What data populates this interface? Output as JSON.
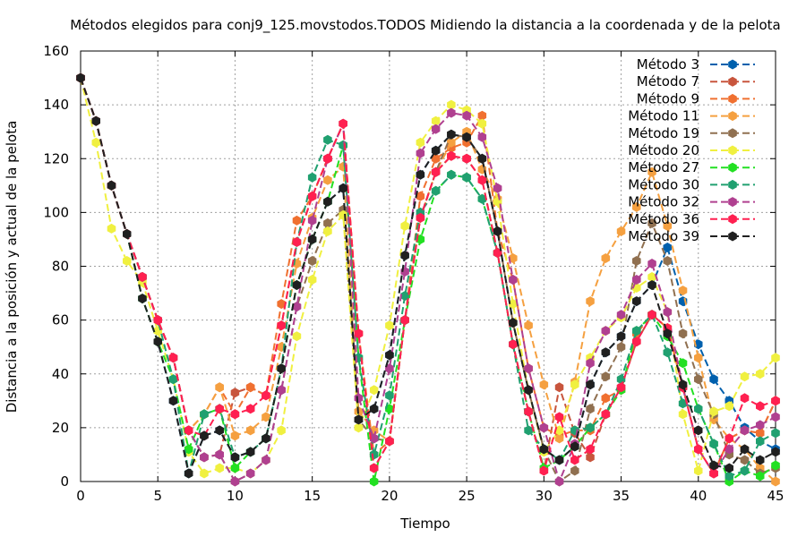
{
  "chart_data": {
    "type": "line",
    "title": "Métodos elegidos para conj9_125.movstodos.TODOS Midiendo la distancia a la coordenada y de la pelota",
    "xlabel": "Tiempo",
    "ylabel": "Distancia a la posición y actual de la pelota",
    "xlim": [
      0,
      45
    ],
    "ylim": [
      0,
      160
    ],
    "xticks": [
      0,
      5,
      10,
      15,
      20,
      25,
      30,
      35,
      40,
      45
    ],
    "yticks": [
      0,
      20,
      40,
      60,
      80,
      100,
      120,
      140,
      160
    ],
    "grid": true,
    "legend_position": "top-right",
    "x": [
      0,
      1,
      2,
      3,
      4,
      5,
      6,
      7,
      8,
      9,
      10,
      11,
      12,
      13,
      14,
      15,
      16,
      17,
      18,
      19,
      20,
      21,
      22,
      23,
      24,
      25,
      26,
      27,
      28,
      29,
      30,
      31,
      32,
      33,
      34,
      35,
      36,
      37,
      38,
      39,
      40,
      41,
      42,
      43,
      44,
      45
    ],
    "series": [
      {
        "name": "Método 3",
        "color": "#0060ad",
        "values": [
          150,
          134,
          110,
          92,
          68,
          52,
          30,
          3,
          17,
          19,
          9,
          11,
          16,
          42,
          73,
          90,
          104,
          109,
          23,
          27,
          47,
          84,
          114,
          123,
          129,
          128,
          120,
          93,
          59,
          34,
          12,
          8,
          13,
          36,
          48,
          54,
          67,
          73,
          87,
          67,
          51,
          38,
          30,
          20,
          15,
          12
        ]
      },
      {
        "name": "Método 7",
        "color": "#c8553d",
        "values": [
          150,
          134,
          110,
          92,
          76,
          60,
          46,
          19,
          9,
          10,
          33,
          35,
          32,
          58,
          89,
          106,
          120,
          133,
          55,
          5,
          15,
          60,
          98,
          115,
          121,
          120,
          112,
          85,
          51,
          26,
          4,
          35,
          18,
          9,
          25,
          35,
          52,
          62,
          57,
          35,
          12,
          3,
          16,
          19,
          18,
          30
        ]
      },
      {
        "name": "Método 9",
        "color": "#f07030",
        "values": [
          150,
          134,
          110,
          92,
          76,
          60,
          46,
          19,
          25,
          35,
          25,
          35,
          32,
          66,
          97,
          106,
          120,
          133,
          55,
          10,
          15,
          60,
          106,
          120,
          124,
          126,
          136,
          93,
          75,
          42,
          20,
          17,
          19,
          19,
          31,
          34,
          55,
          62,
          57,
          35,
          12,
          3,
          16,
          19,
          18,
          30
        ]
      },
      {
        "name": "Método 11",
        "color": "#f5a040",
        "values": [
          150,
          134,
          110,
          92,
          76,
          60,
          46,
          19,
          25,
          35,
          17,
          19,
          24,
          50,
          81,
          98,
          112,
          117,
          26,
          19,
          15,
          60,
          98,
          115,
          126,
          130,
          116,
          105,
          83,
          58,
          36,
          16,
          37,
          67,
          83,
          93,
          102,
          115,
          95,
          71,
          46,
          23,
          16,
          12,
          5,
          0
        ]
      },
      {
        "name": "Método 19",
        "color": "#907050",
        "values": [
          150,
          134,
          110,
          92,
          76,
          60,
          46,
          19,
          9,
          10,
          0,
          3,
          8,
          34,
          65,
          82,
          96,
          101,
          23,
          16,
          15,
          60,
          98,
          115,
          129,
          128,
          120,
          93,
          59,
          34,
          12,
          0,
          4,
          27,
          39,
          50,
          82,
          96,
          82,
          55,
          38,
          25,
          10,
          8,
          3,
          5
        ]
      },
      {
        "name": "Método 20",
        "color": "#f0f040",
        "values": [
          150,
          126,
          94,
          82,
          74,
          56,
          38,
          11,
          3,
          5,
          5,
          3,
          8,
          19,
          54,
          75,
          93,
          99,
          20,
          34,
          58,
          95,
          126,
          134,
          140,
          138,
          133,
          104,
          66,
          34,
          11,
          19,
          36,
          46,
          56,
          61,
          72,
          76,
          63,
          25,
          4,
          26,
          28,
          39,
          40,
          46
        ]
      },
      {
        "name": "Método 27",
        "color": "#22e022",
        "values": [
          150,
          134,
          110,
          92,
          68,
          52,
          38,
          12,
          25,
          27,
          5,
          11,
          16,
          42,
          73,
          90,
          104,
          125,
          46,
          0,
          27,
          60,
          90,
          108,
          114,
          113,
          105,
          85,
          51,
          26,
          5,
          8,
          13,
          20,
          25,
          34,
          56,
          62,
          54,
          44,
          27,
          14,
          0,
          4,
          2,
          6
        ]
      },
      {
        "name": "Método 30",
        "color": "#20a070",
        "values": [
          150,
          134,
          110,
          92,
          76,
          60,
          38,
          3,
          25,
          27,
          9,
          11,
          16,
          42,
          89,
          113,
          127,
          125,
          46,
          10,
          32,
          69,
          100,
          108,
          114,
          113,
          105,
          85,
          51,
          19,
          12,
          8,
          19,
          20,
          25,
          38,
          56,
          62,
          48,
          29,
          27,
          14,
          2,
          4,
          15,
          18
        ]
      },
      {
        "name": "Método 32",
        "color": "#b04090",
        "values": [
          150,
          134,
          110,
          92,
          76,
          60,
          46,
          19,
          9,
          10,
          0,
          3,
          8,
          34,
          65,
          97,
          120,
          133,
          31,
          16,
          42,
          78,
          122,
          131,
          137,
          136,
          128,
          109,
          75,
          42,
          20,
          0,
          14,
          44,
          56,
          62,
          75,
          81,
          63,
          35,
          12,
          3,
          12,
          19,
          21,
          24
        ]
      },
      {
        "name": "Método 36",
        "color": "#ff2050",
        "values": [
          150,
          134,
          110,
          92,
          76,
          60,
          46,
          19,
          17,
          27,
          25,
          27,
          32,
          58,
          89,
          106,
          120,
          133,
          55,
          5,
          15,
          60,
          98,
          115,
          121,
          120,
          112,
          85,
          51,
          26,
          4,
          24,
          8,
          12,
          25,
          35,
          52,
          62,
          57,
          35,
          12,
          3,
          16,
          31,
          28,
          30
        ]
      },
      {
        "name": "Método 39",
        "color": "#202020",
        "values": [
          150,
          134,
          110,
          92,
          68,
          52,
          30,
          3,
          17,
          19,
          9,
          11,
          16,
          42,
          73,
          90,
          104,
          109,
          23,
          27,
          47,
          84,
          114,
          123,
          129,
          128,
          120,
          93,
          59,
          34,
          12,
          8,
          13,
          36,
          48,
          54,
          67,
          73,
          55,
          36,
          19,
          6,
          5,
          12,
          8,
          11
        ]
      }
    ]
  }
}
